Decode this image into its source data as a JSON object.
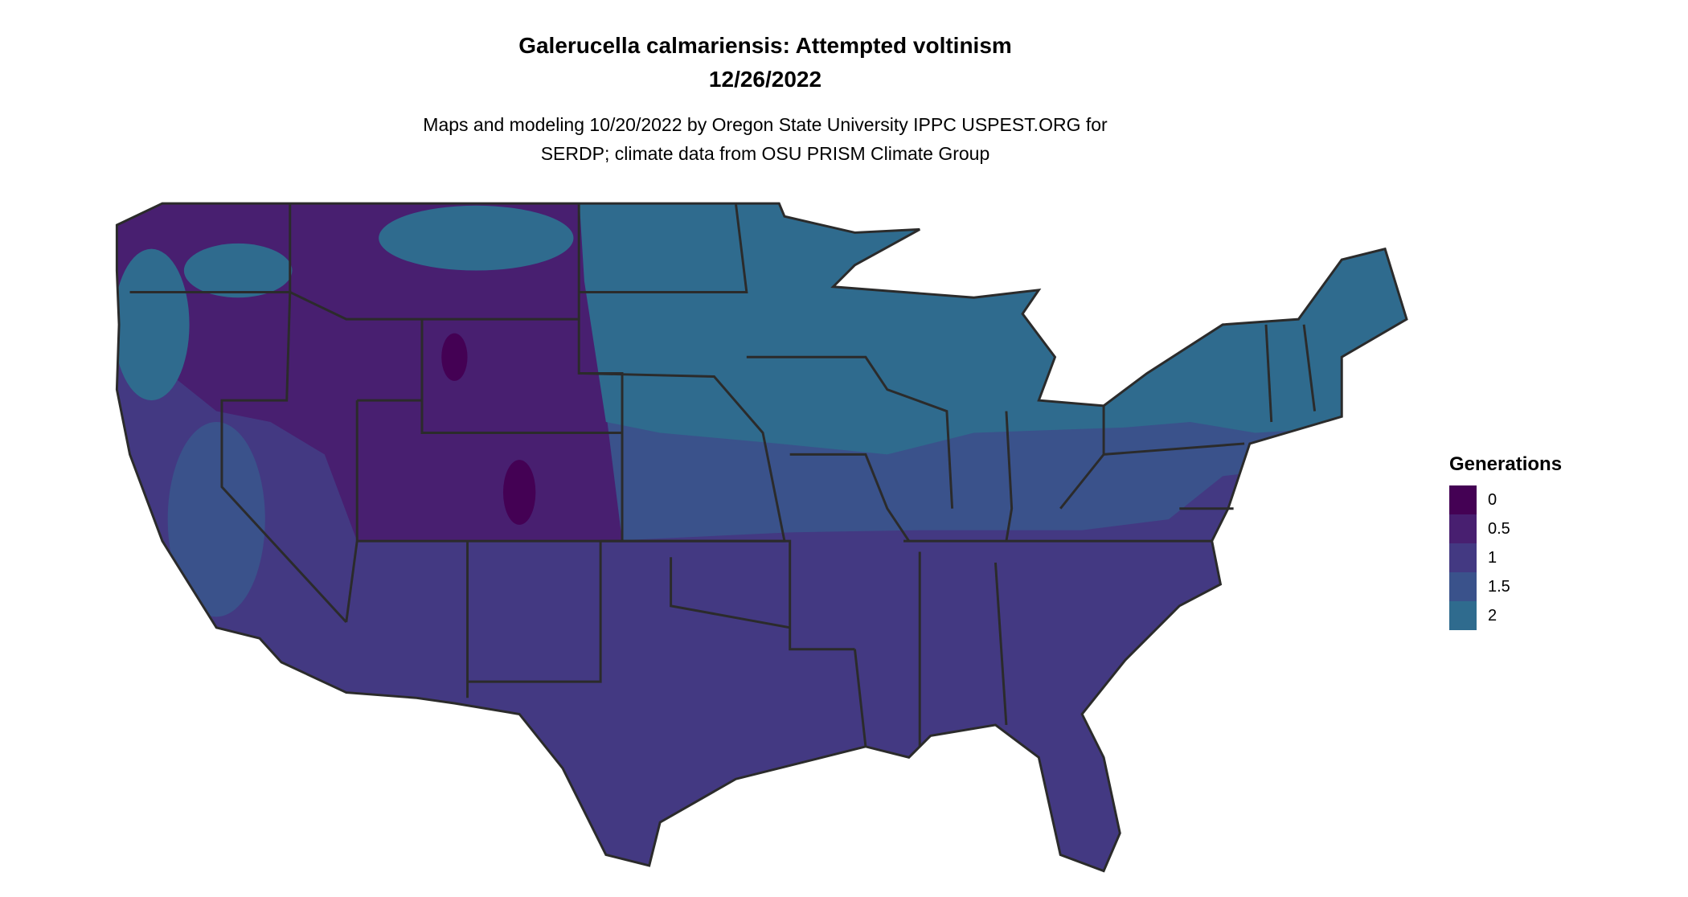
{
  "title": "Galerucella calmariensis: Attempted voltinism",
  "date": "12/26/2022",
  "subtitle_line1": "Maps and modeling 10/20/2022 by Oregon State University IPPC USPEST.ORG for",
  "subtitle_line2": "SERDP; climate data from OSU PRISM Climate Group",
  "chart_data": {
    "type": "heatmap",
    "region": "Contiguous United States",
    "legend": {
      "title": "Generations",
      "placement": "right",
      "items": [
        {
          "label": "0",
          "value": 0,
          "color": "#440154"
        },
        {
          "label": "0.5",
          "value": 0.5,
          "color": "#481f70"
        },
        {
          "label": "1",
          "value": 1,
          "color": "#433982"
        },
        {
          "label": "1.5",
          "value": 1.5,
          "color": "#3a528b"
        },
        {
          "label": "2",
          "value": 2,
          "color": "#2f6b8e"
        }
      ]
    },
    "regions": [
      {
        "area": "South and Southwest",
        "value": 1
      },
      {
        "area": "Central band (KS, MO, KY, VA, southern PA)",
        "value": 1.5
      },
      {
        "area": "Northern Plains, Great Lakes, Northeast",
        "value": 2
      },
      {
        "area": "Interior West mountains",
        "value": 0.5
      },
      {
        "area": "High Rockies peaks (WY, CO)",
        "value": 0
      }
    ]
  }
}
